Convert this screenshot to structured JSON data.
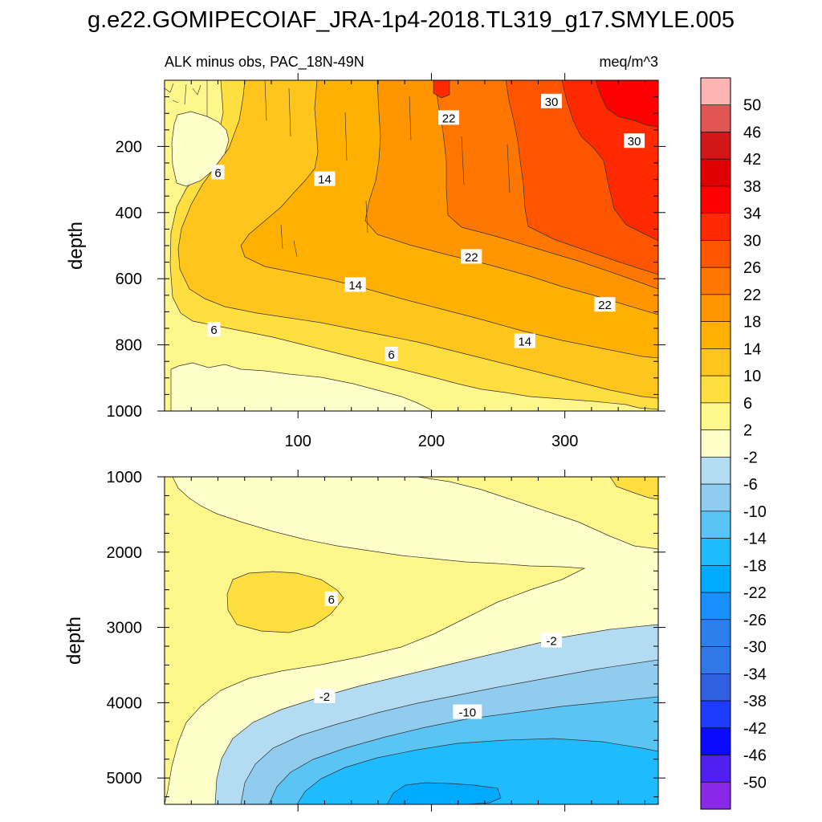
{
  "title": "g.e22.GOMIPECOIAF_JRA-1p4-2018.TL319_g17.SMYLE.005",
  "chart_data": [
    {
      "type": "heatmap",
      "panel": "upper",
      "left_title": "ALK minus obs, PAC_18N-49N",
      "right_title": "meq/m^3",
      "ylabel": "depth",
      "xlabel": "",
      "xlim": [
        0,
        370
      ],
      "ylim": [
        1000,
        0
      ],
      "x_ticks": [
        100,
        200,
        300
      ],
      "y_ticks": [
        200,
        400,
        600,
        800,
        1000
      ],
      "grid": false,
      "contour_labels": [
        {
          "text": "6",
          "x": 40,
          "y": 280
        },
        {
          "text": "14",
          "x": 120,
          "y": 300
        },
        {
          "text": "22",
          "x": 213,
          "y": 115
        },
        {
          "text": "30",
          "x": 290,
          "y": 65
        },
        {
          "text": "30",
          "x": 352,
          "y": 185
        },
        {
          "text": "22",
          "x": 230,
          "y": 535
        },
        {
          "text": "14",
          "x": 143,
          "y": 620
        },
        {
          "text": "22",
          "x": 330,
          "y": 680
        },
        {
          "text": "6",
          "x": 37,
          "y": 755
        },
        {
          "text": "14",
          "x": 270,
          "y": 790
        },
        {
          "text": "6",
          "x": 170,
          "y": 830
        }
      ]
    },
    {
      "type": "heatmap",
      "panel": "lower",
      "ylabel": "depth",
      "xlabel": "",
      "xlim": [
        0,
        370
      ],
      "ylim": [
        5350,
        1000
      ],
      "x_ticks": [
        100,
        200,
        300
      ],
      "y_ticks": [
        1000,
        2000,
        3000,
        4000,
        5000
      ],
      "grid": false,
      "contour_labels": [
        {
          "text": "6",
          "x": 125,
          "y": 2630
        },
        {
          "text": "-2",
          "x": 290,
          "y": 3180
        },
        {
          "text": "-2",
          "x": 120,
          "y": 3920
        },
        {
          "text": "-10",
          "x": 227,
          "y": 4130
        }
      ]
    }
  ],
  "colorbar": {
    "labels": [
      "50",
      "46",
      "42",
      "38",
      "34",
      "30",
      "26",
      "22",
      "18",
      "14",
      "10",
      "6",
      "2",
      "-2",
      "-6",
      "-10",
      "-14",
      "-18",
      "-22",
      "-26",
      "-30",
      "-34",
      "-38",
      "-42",
      "-46",
      "-50"
    ],
    "colors": [
      "#ffb4b4",
      "#e25555",
      "#d01818",
      "#e00000",
      "#ff0000",
      "#ff2a00",
      "#ff5500",
      "#ff7700",
      "#ff9500",
      "#ffb000",
      "#ffc51c",
      "#ffde40",
      "#fff68c",
      "#ffffca",
      "#b3dcf2",
      "#8fccee",
      "#5ac4f4",
      "#1ebcff",
      "#00aaff",
      "#1890ff",
      "#2c80ee",
      "#3078e8",
      "#3060e0",
      "#1e3cff",
      "#0a0aff",
      "#5020f0",
      "#8a28e8"
    ]
  }
}
